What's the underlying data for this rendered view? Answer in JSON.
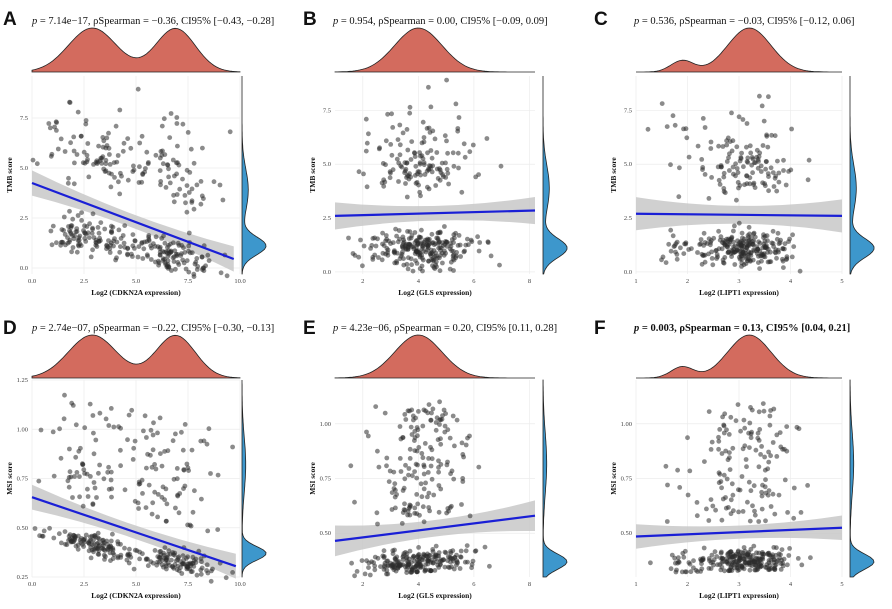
{
  "figure": {
    "colors": {
      "density_top": "#d36b5e",
      "density_right": "#3d97cc",
      "points": "#2b2b2b",
      "fit_line": "#1a1fd6",
      "ci_band": "#c8c8c8",
      "grid": "#ececec"
    }
  },
  "chart_data": [
    {
      "panel": "A",
      "type": "scatter",
      "stat": {
        "p": "7.14e−17",
        "rho": "−0.36",
        "ci": "[−0.43, −0.28]"
      },
      "xlabel": "Log2 (CDKN2A expression)",
      "ylabel": "TMB score",
      "xlim": [
        0,
        10
      ],
      "ylim": [
        -0.3,
        9.6
      ],
      "xticks": [
        0,
        2.5,
        5,
        7.5,
        10
      ],
      "xtick_labels": [
        "0.0",
        "2.5",
        "5.0",
        "7.5",
        "10.0"
      ],
      "yticks": [
        0,
        2.5,
        5,
        7.5
      ],
      "ytick_labels": [
        "0.0",
        "2.5",
        "5.0",
        "7.5"
      ],
      "fit": {
        "x0": 0,
        "y0": 4.25,
        "x1": 9.7,
        "y1": 0.45,
        "band": 0.45
      },
      "seed": 11,
      "x_dist": {
        "mix": [
          [
            0.55,
            2.9,
            1.2
          ],
          [
            0.45,
            6.9,
            1.0
          ]
        ],
        "min": 0.05,
        "max": 9.8
      },
      "y_mode": "tmb",
      "n": 380,
      "top_density": [
        [
          0.55,
          2.9,
          1.15
        ],
        [
          0.45,
          6.9,
          0.95
        ]
      ],
      "right_density": [
        [
          0.62,
          1.1,
          0.45
        ],
        [
          0.38,
          3.9,
          1.05
        ]
      ]
    },
    {
      "panel": "B",
      "type": "scatter",
      "stat": {
        "p": "0.954",
        "rho": "0.00",
        "ci": "[−0.09, 0.09]"
      },
      "xlabel": "Log2 (GLS expression)",
      "ylabel": "TMB score",
      "xlim": [
        1,
        8.2
      ],
      "ylim": [
        -0.1,
        9.1
      ],
      "xticks": [
        2,
        4,
        6,
        8
      ],
      "xtick_labels": [
        "2",
        "4",
        "6",
        "8"
      ],
      "yticks": [
        0,
        2.5,
        5,
        7.5
      ],
      "ytick_labels": [
        "0.0",
        "2.5",
        "5.0",
        "7.5"
      ],
      "fit": {
        "x0": 1,
        "y0": 2.6,
        "x1": 8.2,
        "y1": 2.85,
        "band": 0.45
      },
      "seed": 23,
      "x_dist": {
        "mix": [
          [
            1.0,
            4.0,
            0.95
          ]
        ],
        "min": 1.0,
        "max": 8.2
      },
      "y_mode": "tmb",
      "n": 380,
      "top_density": [
        [
          1.0,
          4.0,
          0.85
        ]
      ],
      "right_density": [
        [
          0.62,
          1.1,
          0.45
        ],
        [
          0.38,
          3.9,
          1.05
        ]
      ]
    },
    {
      "panel": "C",
      "type": "scatter",
      "stat": {
        "p": "0.536",
        "rho": "−0.03",
        "ci": "[−0.12, 0.06]"
      },
      "xlabel": "Log2 (LIPT1 expression)",
      "ylabel": "TMB score",
      "xlim": [
        1,
        5
      ],
      "ylim": [
        -0.1,
        9.1
      ],
      "xticks": [
        1,
        2,
        3,
        4,
        5
      ],
      "xtick_labels": [
        "1",
        "2",
        "3",
        "4",
        "5"
      ],
      "yticks": [
        0,
        2.5,
        5,
        7.5
      ],
      "ytick_labels": [
        "0.0",
        "2.5",
        "5.0",
        "7.5"
      ],
      "fit": {
        "x0": 1,
        "y0": 2.7,
        "x1": 5,
        "y1": 2.6,
        "band": 0.55
      },
      "seed": 37,
      "x_dist": {
        "mix": [
          [
            0.9,
            3.2,
            0.45
          ],
          [
            0.1,
            1.9,
            0.25
          ]
        ],
        "min": 1.05,
        "max": 4.95
      },
      "y_mode": "tmb",
      "n": 380,
      "top_density": [
        [
          0.88,
          3.2,
          0.42
        ],
        [
          0.12,
          1.9,
          0.22
        ]
      ],
      "right_density": [
        [
          0.62,
          1.1,
          0.45
        ],
        [
          0.38,
          3.9,
          1.05
        ]
      ]
    },
    {
      "panel": "D",
      "type": "scatter",
      "stat": {
        "p": "2.74e−07",
        "rho": "−0.22",
        "ci": "[−0.30, −0.13]"
      },
      "xlabel": "Log2 (CDKN2A expression)",
      "ylabel": "MSI score",
      "xlim": [
        0,
        10
      ],
      "ylim": [
        0.25,
        1.25
      ],
      "xticks": [
        0,
        2.5,
        5,
        7.5,
        10
      ],
      "xtick_labels": [
        "0.0",
        "2.5",
        "5.0",
        "7.5",
        "10.0"
      ],
      "yticks": [
        0.25,
        0.5,
        0.75,
        1.0,
        1.25
      ],
      "ytick_labels": [
        "0.25",
        "0.50",
        "0.75",
        "1.00",
        "1.25"
      ],
      "fit": {
        "x0": 0,
        "y0": 0.655,
        "x1": 9.8,
        "y1": 0.305,
        "band": 0.045
      },
      "seed": 53,
      "x_dist": {
        "mix": [
          [
            0.55,
            2.9,
            1.2
          ],
          [
            0.45,
            6.9,
            1.0
          ]
        ],
        "min": 0.05,
        "max": 9.8
      },
      "y_mode": "msi",
      "n": 380,
      "top_density": [
        [
          0.55,
          2.9,
          1.15
        ],
        [
          0.45,
          6.9,
          0.95
        ]
      ],
      "right_density": [
        [
          0.62,
          0.37,
          0.035
        ],
        [
          0.38,
          0.82,
          0.14
        ]
      ]
    },
    {
      "panel": "E",
      "type": "scatter",
      "stat": {
        "p": "4.23e−06",
        "rho": "0.20",
        "ci": "[0.11, 0.28]"
      },
      "xlabel": "Log2 (GLS expression)",
      "ylabel": "MSI score",
      "xlim": [
        1,
        8.2
      ],
      "ylim": [
        0.3,
        1.2
      ],
      "xticks": [
        2,
        4,
        6,
        8
      ],
      "xtick_labels": [
        "2",
        "4",
        "6",
        "8"
      ],
      "yticks": [
        0.5,
        0.75,
        1.0
      ],
      "ytick_labels": [
        "0.50",
        "0.75",
        "1.00"
      ],
      "fit": {
        "x0": 1,
        "y0": 0.465,
        "x1": 8.2,
        "y1": 0.58,
        "band": 0.05
      },
      "seed": 71,
      "x_dist": {
        "mix": [
          [
            1.0,
            4.0,
            0.95
          ]
        ],
        "min": 1.0,
        "max": 8.2
      },
      "y_mode": "msi",
      "n": 380,
      "top_density": [
        [
          1.0,
          4.0,
          0.85
        ]
      ],
      "right_density": [
        [
          0.62,
          0.37,
          0.035
        ],
        [
          0.38,
          0.82,
          0.14
        ]
      ]
    },
    {
      "panel": "F",
      "type": "scatter",
      "stat": {
        "p": "0.003",
        "rho": "0.13",
        "ci": "[0.04, 0.21]"
      },
      "xlabel": "Log2 (LIPT1 expression)",
      "ylabel": "MSI score",
      "xlim": [
        1,
        5
      ],
      "ylim": [
        0.3,
        1.2
      ],
      "xticks": [
        1,
        2,
        3,
        4,
        5
      ],
      "xtick_labels": [
        "1",
        "2",
        "3",
        "4",
        "5"
      ],
      "yticks": [
        0.5,
        0.75,
        1.0
      ],
      "ytick_labels": [
        "0.50",
        "0.75",
        "1.00"
      ],
      "fit": {
        "x0": 1,
        "y0": 0.485,
        "x1": 5,
        "y1": 0.525,
        "band": 0.04
      },
      "seed": 89,
      "x_dist": {
        "mix": [
          [
            0.9,
            3.2,
            0.45
          ],
          [
            0.1,
            1.9,
            0.25
          ]
        ],
        "min": 1.05,
        "max": 4.95
      },
      "y_mode": "msi",
      "n": 380,
      "top_density": [
        [
          0.88,
          3.2,
          0.42
        ],
        [
          0.12,
          1.9,
          0.22
        ]
      ],
      "right_density": [
        [
          0.62,
          0.37,
          0.035
        ],
        [
          0.38,
          0.82,
          0.14
        ]
      ]
    }
  ]
}
